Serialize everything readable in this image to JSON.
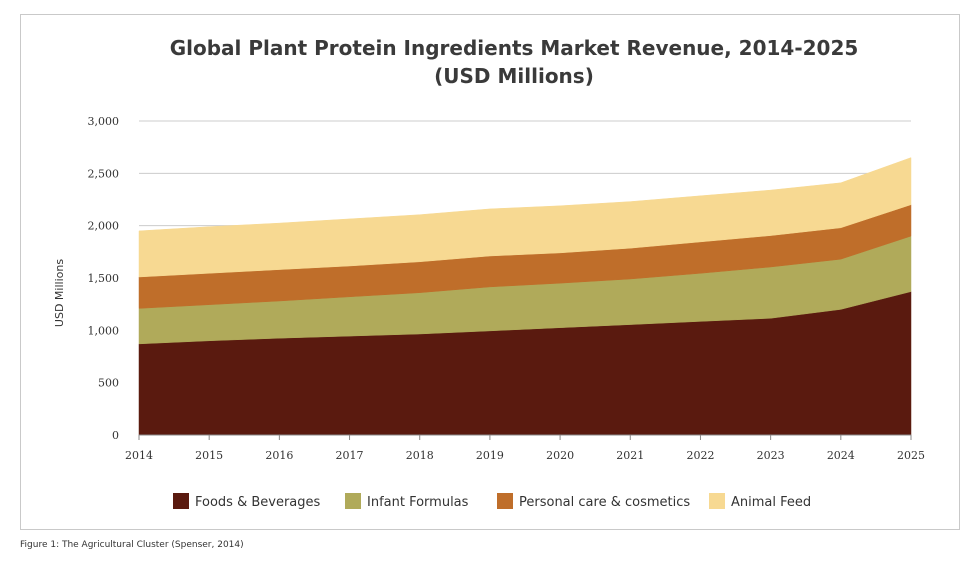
{
  "chart_data": {
    "type": "area",
    "stacked": true,
    "title": "Global Plant Protein Ingredients Market Revenue, 2014-2025",
    "subtitle": "(USD Millions)",
    "ylabel": "USD Millions",
    "xlabel": "",
    "x": [
      "2014",
      "2015",
      "2016",
      "2017",
      "2018",
      "2019",
      "2020",
      "2021",
      "2022",
      "2023",
      "2024",
      "2025"
    ],
    "ylim": [
      0,
      3000
    ],
    "yticks": [
      0,
      500,
      1000,
      1500,
      2000,
      2500,
      3000
    ],
    "ytick_labels": [
      "0",
      "500",
      "1,000",
      "1,500",
      "2,000",
      "2,500",
      "3,000"
    ],
    "grid": true,
    "legend_position": "bottom",
    "series": [
      {
        "name": "Foods & Beverages",
        "color": "#5a1a0f",
        "values": [
          870,
          900,
          925,
          945,
          965,
          995,
          1025,
          1055,
          1085,
          1115,
          1200,
          1370
        ]
      },
      {
        "name": "Infant Formulas",
        "color": "#b0aa5a",
        "values": [
          340,
          345,
          355,
          375,
          395,
          420,
          425,
          435,
          460,
          490,
          480,
          530
        ]
      },
      {
        "name": "Personal care & cosmetics",
        "color": "#bf6e2a",
        "values": [
          300,
          300,
          300,
          295,
          295,
          295,
          290,
          295,
          300,
          300,
          300,
          300
        ]
      },
      {
        "name": "Animal Feed",
        "color": "#f7d992",
        "values": [
          440,
          445,
          445,
          450,
          450,
          450,
          450,
          445,
          440,
          435,
          430,
          450
        ]
      }
    ]
  },
  "caption": "Figure 1: The Agricultural Cluster (Spenser, 2014)"
}
